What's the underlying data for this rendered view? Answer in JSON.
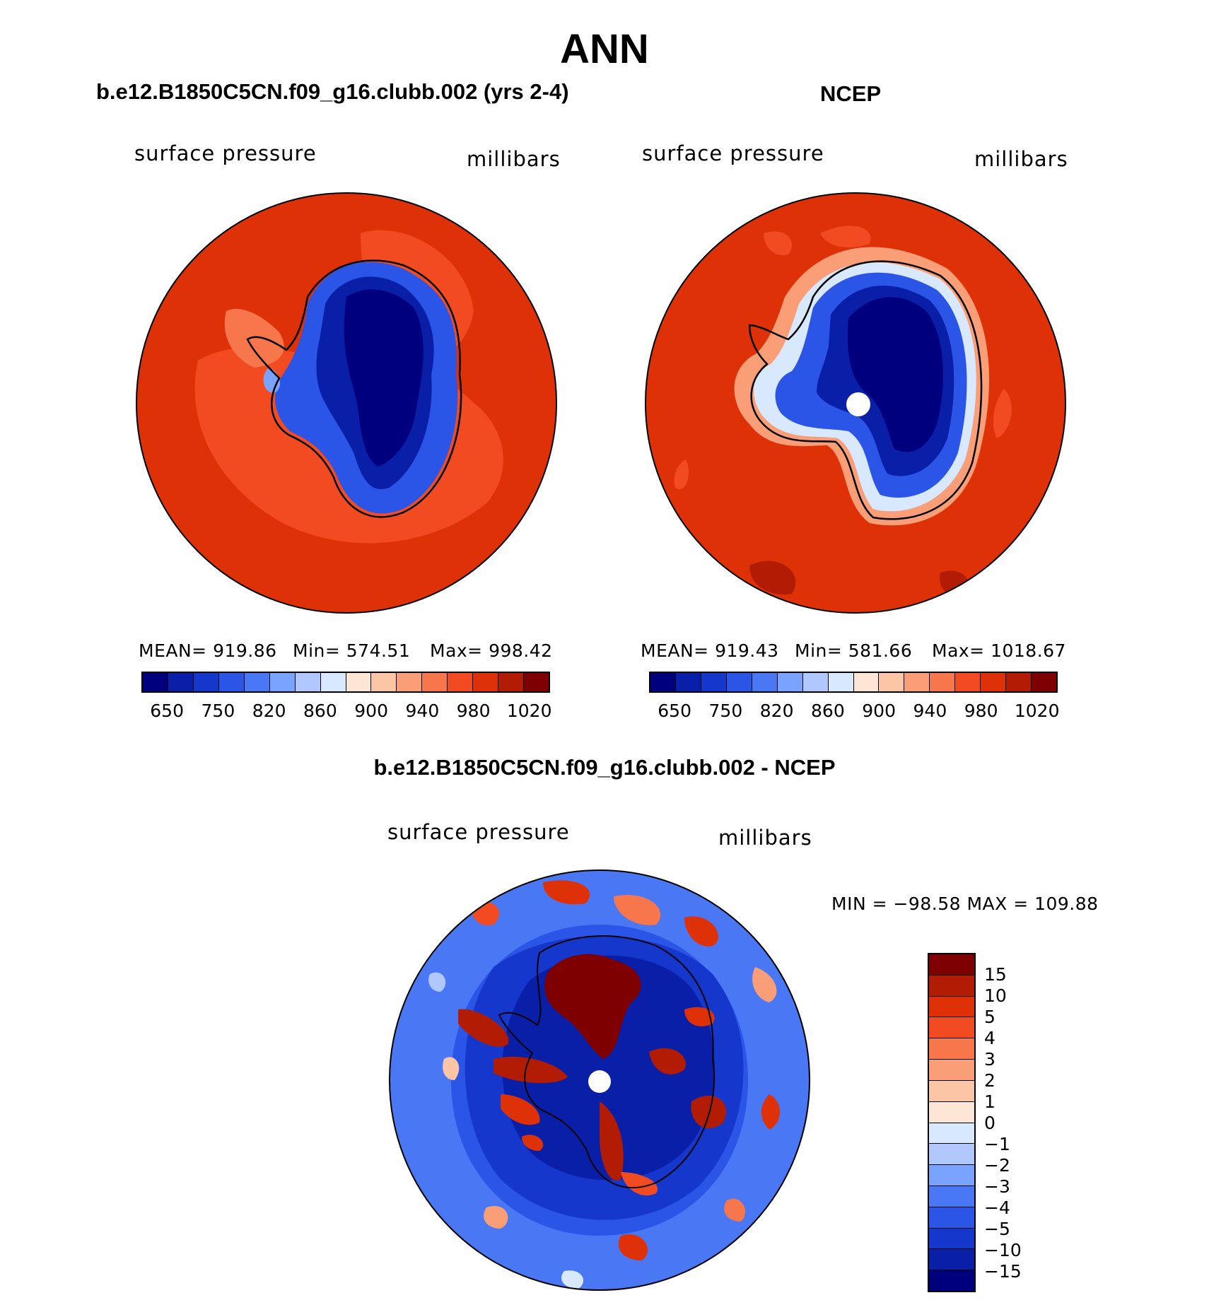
{
  "title": "ANN",
  "panels": [
    {
      "subtitle": "b.e12.B1850C5CN.f09_g16.clubb.002 (yrs 2-4)",
      "variable": "surface pressure",
      "units": "millibars",
      "stats": {
        "mean": "MEAN= 919.86",
        "min": "Min= 574.51",
        "max": "Max= 998.42"
      }
    },
    {
      "subtitle": "NCEP",
      "variable": "surface pressure",
      "units": "millibars",
      "stats": {
        "mean": "MEAN= 919.43",
        "min": "Min= 581.66",
        "max": "Max= 1018.67"
      }
    }
  ],
  "colorbar": {
    "colors": [
      "#00007f",
      "#0a1fa8",
      "#1637cc",
      "#2a55e6",
      "#4a78f5",
      "#7aa2ff",
      "#b0c8ff",
      "#d8e8ff",
      "#fde6d6",
      "#fcc5a6",
      "#f99e76",
      "#f7764b",
      "#f24b22",
      "#df3108",
      "#b21c04",
      "#7f0000"
    ],
    "tick_labels": [
      "650",
      "750",
      "820",
      "860",
      "900",
      "940",
      "980",
      "1020"
    ]
  },
  "difference": {
    "subtitle": "b.e12.B1850C5CN.f09_g16.clubb.002 - NCEP",
    "variable": "surface pressure",
    "units": "millibars",
    "minmax": "MIN = −98.58 MAX = 109.88",
    "colorbar": {
      "colors": [
        "#7f0000",
        "#b21c04",
        "#df3108",
        "#f24b22",
        "#f7764b",
        "#f99e76",
        "#fcc5a6",
        "#fde6d6",
        "#d8e8ff",
        "#b0c8ff",
        "#7aa2ff",
        "#4a78f5",
        "#2a55e6",
        "#1637cc",
        "#0a1fa8",
        "#00007f"
      ],
      "tick_labels": [
        "15",
        "10",
        "5",
        "4",
        "3",
        "2",
        "1",
        "0",
        "−1",
        "−2",
        "−3",
        "−4",
        "−5",
        "−10",
        "−15"
      ]
    }
  }
}
